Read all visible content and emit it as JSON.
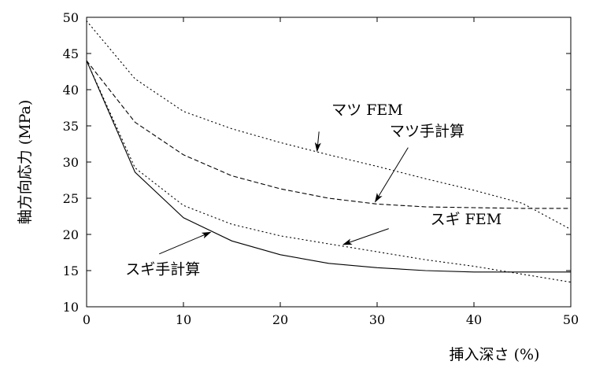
{
  "chart_data": {
    "type": "line",
    "title": "",
    "xlabel": "挿入深さ (%)",
    "ylabel": "軸方向応力 (MPa)",
    "xlim": [
      0,
      50
    ],
    "ylim": [
      10,
      50
    ],
    "xticks": [
      0,
      10,
      20,
      30,
      40,
      50
    ],
    "yticks": [
      10,
      15,
      20,
      25,
      30,
      35,
      40,
      45,
      50
    ],
    "grid": false,
    "legend": "none",
    "series": [
      {
        "name": "マツ FEM",
        "style": "dotted",
        "x": [
          0,
          5,
          10,
          15,
          20,
          25,
          30,
          35,
          40,
          45,
          50
        ],
        "y": [
          49.5,
          41.5,
          37.0,
          34.6,
          32.7,
          31.0,
          29.4,
          27.7,
          26.1,
          24.3,
          20.7
        ]
      },
      {
        "name": "マツ手計算",
        "style": "dashed",
        "x": [
          0,
          5,
          10,
          15,
          20,
          25,
          30,
          35,
          40,
          45,
          50
        ],
        "y": [
          44.0,
          35.5,
          31.0,
          28.1,
          26.3,
          25.0,
          24.2,
          23.8,
          23.7,
          23.6,
          23.6
        ]
      },
      {
        "name": "スギ FEM",
        "style": "dotted",
        "x": [
          0,
          5,
          10,
          15,
          20,
          25,
          30,
          35,
          40,
          45,
          50
        ],
        "y": [
          44.0,
          29.2,
          24.0,
          21.4,
          19.8,
          18.7,
          17.6,
          16.5,
          15.6,
          14.5,
          13.4
        ]
      },
      {
        "name": "スギ手計算",
        "style": "solid",
        "x": [
          0,
          5,
          10,
          15,
          20,
          25,
          30,
          35,
          40,
          45,
          50
        ],
        "y": [
          44.0,
          28.6,
          22.3,
          19.1,
          17.2,
          16.0,
          15.4,
          15.0,
          14.8,
          14.8,
          14.8
        ]
      }
    ],
    "annotations": [
      {
        "text": "マツ FEM",
        "series": 0,
        "label_pos": [
          25.3,
          36.5
        ],
        "arrow_from": [
          24.0,
          34.2
        ],
        "arrow_to": [
          23.8,
          31.5
        ]
      },
      {
        "text": "マツ手計算",
        "series": 1,
        "label_pos": [
          31.3,
          33.6
        ],
        "arrow_from": [
          33.2,
          32.0
        ],
        "arrow_to": [
          29.8,
          24.5
        ]
      },
      {
        "text": "スギ FEM",
        "series": 2,
        "label_pos": [
          35.5,
          21.4
        ],
        "arrow_from": [
          31.2,
          20.8
        ],
        "arrow_to": [
          26.5,
          18.6
        ]
      },
      {
        "text": "スギ手計算",
        "series": 3,
        "label_pos": [
          4.0,
          14.5
        ],
        "arrow_from": [
          7.5,
          17.3
        ],
        "arrow_to": [
          12.8,
          20.3
        ]
      }
    ]
  }
}
